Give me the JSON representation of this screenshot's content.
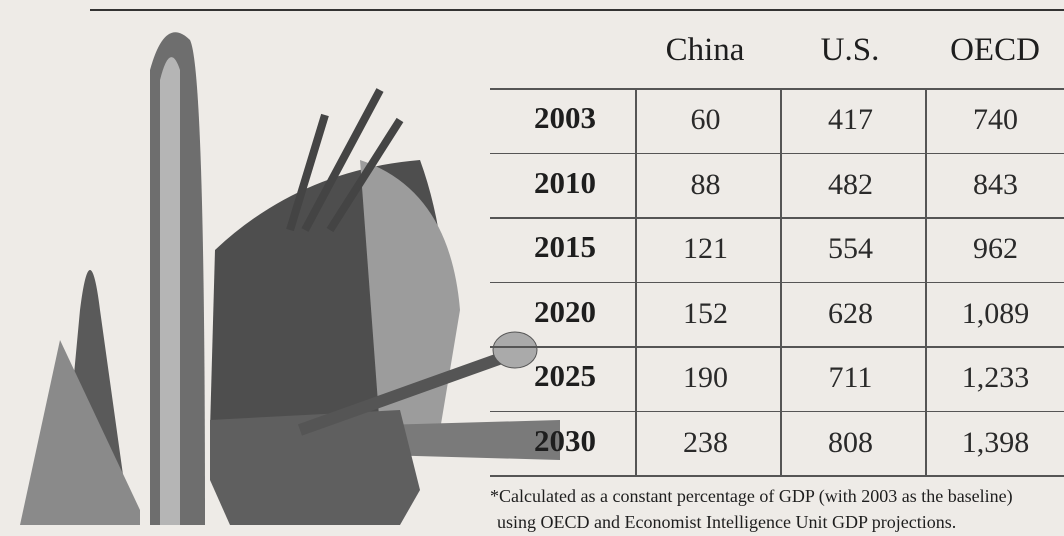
{
  "table": {
    "header": [
      "China",
      "U.S.",
      "OECD"
    ],
    "rows": [
      [
        "2003",
        "60",
        "417",
        "740"
      ],
      [
        "2010",
        "88",
        "482",
        "843"
      ],
      [
        "2015",
        "121",
        "554",
        "962"
      ],
      [
        "2020",
        "152",
        "628",
        "1,089"
      ],
      [
        "2025",
        "190",
        "711",
        "1,233"
      ],
      [
        "2030",
        "238",
        "808",
        "1,398"
      ]
    ],
    "footnote": [
      "*Calculated as a constant percentage of GDP (with 2003 as the baseline)",
      "using OECD and Economist Intelligence Unit GDP projections."
    ]
  }
}
